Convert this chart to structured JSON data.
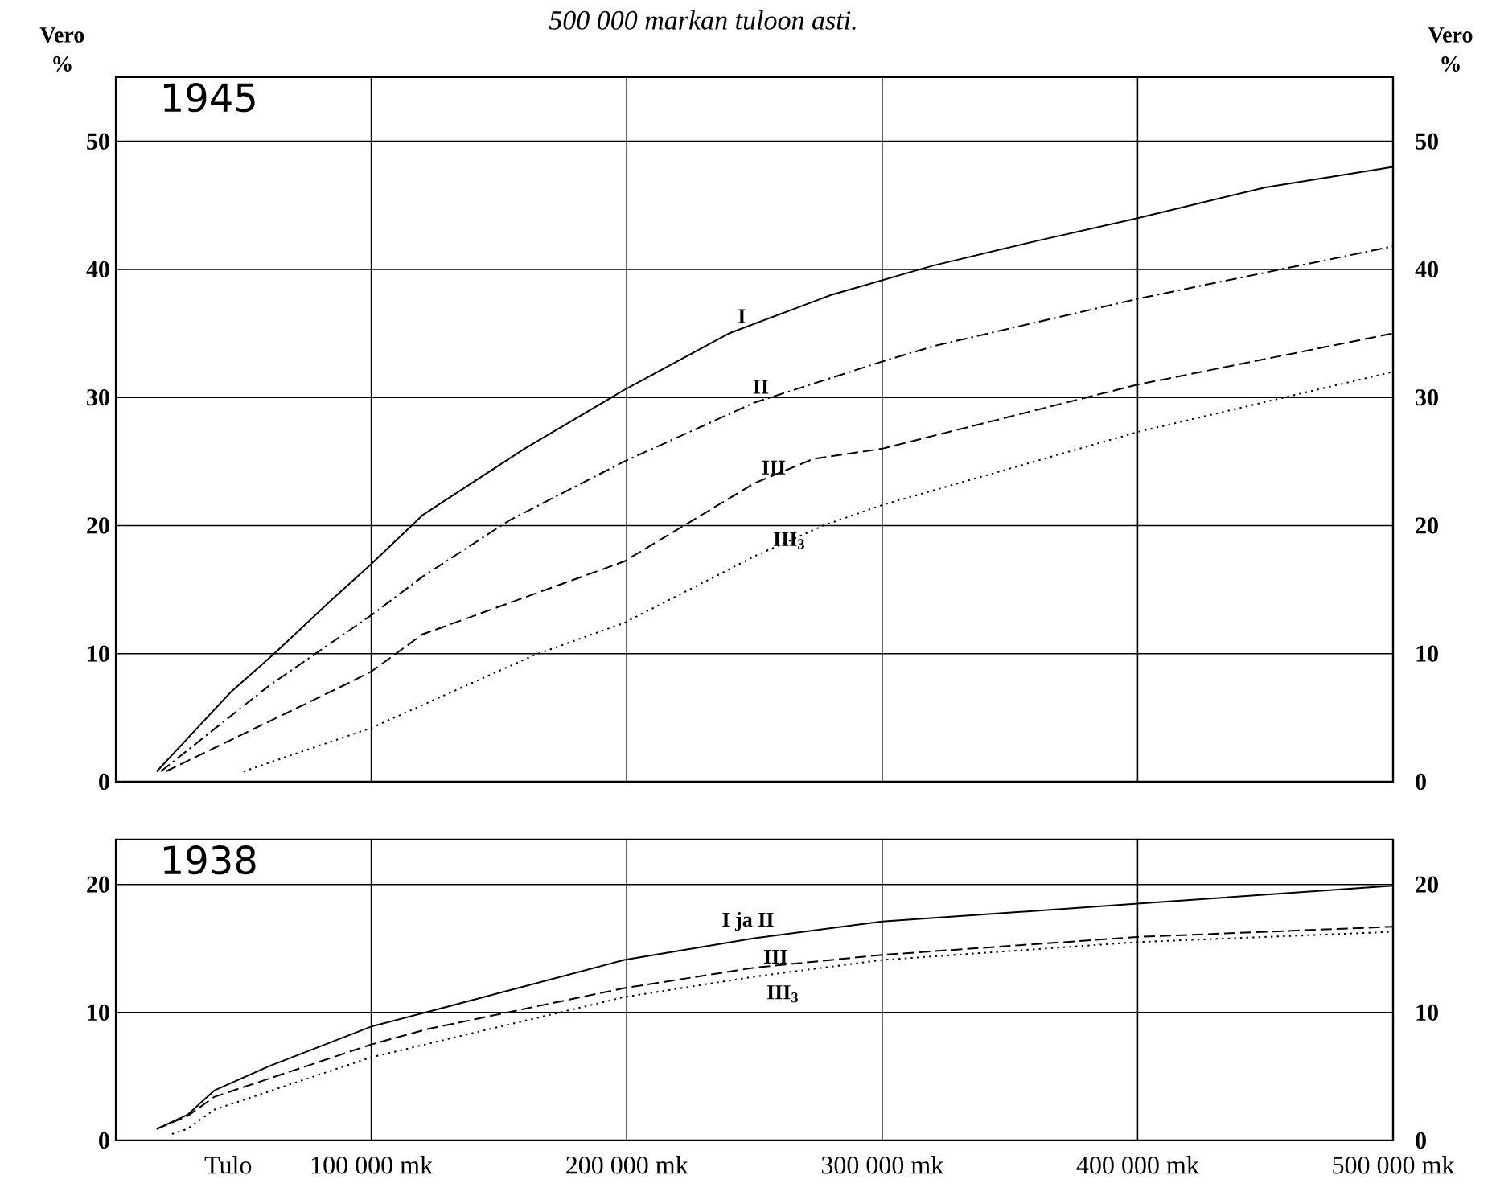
{
  "chart_data": [
    {
      "type": "line",
      "title": "500 000 markan tuloon asti.",
      "subtitle": "1945",
      "ylabel": "Vero %",
      "y2label": "Vero %",
      "xlim": [
        0,
        500000
      ],
      "xticks": [
        {
          "value": 100000,
          "label": null
        },
        {
          "value": 200000,
          "label": null
        },
        {
          "value": 300000,
          "label": null
        },
        {
          "value": 400000,
          "label": null
        },
        {
          "value": 500000,
          "label": null
        }
      ],
      "ylim": [
        0,
        55
      ],
      "yticks": [
        0,
        10,
        20,
        30,
        40,
        50
      ],
      "y2lim": [
        0,
        55
      ],
      "y2ticks": [
        0,
        10,
        20,
        30,
        40,
        50
      ],
      "grid": true,
      "tick_labels": "y",
      "series": [
        {
          "name": "I",
          "color": "#000000",
          "line_style": "solid",
          "x": [
            16000,
            45000,
            62000,
            85000,
            100000,
            120000,
            160000,
            200000,
            240000,
            280000,
            320000,
            360000,
            400000,
            450000,
            500000
          ],
          "values": [
            0.8,
            7,
            10,
            14.3,
            17,
            20.8,
            26,
            30.7,
            35,
            38,
            40.3,
            42.2,
            44,
            46.4,
            48
          ]
        },
        {
          "name": "II",
          "color": "#000000",
          "line_style": "dashdot",
          "x": [
            17600,
            60000,
            100000,
            120000,
            154000,
            199000,
            250000,
            300000,
            320000,
            400000,
            500000
          ],
          "values": [
            0.8,
            7.5,
            13,
            16,
            20.4,
            25,
            29.6,
            32.8,
            34,
            37.7,
            41.8
          ]
        },
        {
          "name": "III",
          "color": "#000000",
          "line_style": "dashed",
          "x": [
            19500,
            89000,
            100000,
            120000,
            199000,
            250000,
            273000,
            300000,
            400000,
            500000
          ],
          "values": [
            0.8,
            7.5,
            8.6,
            11.5,
            17.2,
            23.3,
            25.2,
            26,
            31,
            35
          ]
        },
        {
          "name": "III$_{3}$",
          "color": "#000000",
          "line_style": "dotted",
          "x": [
            50000,
            100000,
            164000,
            199000,
            250000,
            277000,
            300000,
            400000,
            500000
          ],
          "values": [
            0.8,
            4.2,
            9.9,
            12.4,
            17.6,
            20,
            21.6,
            27.3,
            32
          ]
        }
      ]
    },
    {
      "type": "line",
      "title": "1938",
      "xlabel": "Tulo",
      "xlim": [
        0,
        500000
      ],
      "xticks": [
        {
          "value": 100000,
          "label": "100 000 mk"
        },
        {
          "value": 200000,
          "label": "200 000 mk"
        },
        {
          "value": 300000,
          "label": "300 000 mk"
        },
        {
          "value": 400000,
          "label": "400 000 mk"
        },
        {
          "value": 500000,
          "label": "500 000 mk"
        }
      ],
      "ylim": [
        0,
        23.5
      ],
      "yticks": [
        0,
        10,
        20
      ],
      "y2lim": [
        0,
        23.5
      ],
      "y2ticks": [
        0,
        10,
        20
      ],
      "grid": true,
      "series": [
        {
          "name": "I ja II",
          "color": "#000000",
          "line_style": "solid",
          "x": [
            16000,
            28000,
            38500,
            60000,
            100000,
            127000,
            199000,
            250000,
            300000,
            400000,
            500000
          ],
          "values": [
            0.9,
            2,
            3.9,
            5.8,
            8.9,
            10.3,
            14.1,
            15.8,
            17.1,
            18.5,
            19.9
          ]
        },
        {
          "name": "III",
          "color": "#000000",
          "line_style": "dashed",
          "x": [
            16000,
            28000,
            38500,
            100000,
            122000,
            199000,
            250000,
            300000,
            400000,
            500000
          ],
          "values": [
            0.9,
            1.9,
            3.4,
            7.5,
            8.7,
            11.9,
            13.5,
            14.5,
            15.9,
            16.7
          ]
        },
        {
          "name": "III$_{3}$",
          "color": "#000000",
          "line_style": "dotted",
          "x": [
            22000,
            28000,
            38500,
            100000,
            199000,
            250000,
            300000,
            400000,
            500000
          ],
          "values": [
            0.5,
            0.9,
            2.4,
            6.5,
            11.2,
            12.8,
            14.1,
            15.5,
            16.3
          ]
        }
      ]
    }
  ]
}
